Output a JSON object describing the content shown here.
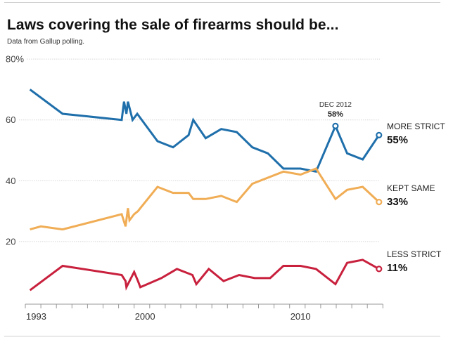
{
  "header": {
    "title": "Laws covering the sale of firearms should be...",
    "subtitle": "Data from Gallup polling."
  },
  "chart_data": {
    "type": "line",
    "title": "Laws covering the sale of firearms should be...",
    "subtitle": "Data from Gallup polling.",
    "xlabel": "",
    "ylabel": "",
    "xlim": [
      1993,
      2016
    ],
    "ylim": [
      0,
      80
    ],
    "y_ticks": [
      {
        "value": 80,
        "label": "80%"
      },
      {
        "value": 60,
        "label": "60"
      },
      {
        "value": 40,
        "label": "40"
      },
      {
        "value": 20,
        "label": "20"
      }
    ],
    "x_tick_labels": [
      {
        "value": 1993,
        "label": "1993"
      },
      {
        "value": 2000,
        "label": "2000"
      },
      {
        "value": 2010,
        "label": "2010"
      }
    ],
    "x_minor_ticks_every_year": true,
    "grid": "horizontal dotted",
    "legend": "direct labels at right end",
    "series": [
      {
        "name": "MORE STRICT",
        "end_label": "55%",
        "color": "#1f6fab",
        "points": [
          [
            1993.3,
            70
          ],
          [
            1995.4,
            62
          ],
          [
            1999.2,
            60
          ],
          [
            1999.35,
            66
          ],
          [
            1999.5,
            62
          ],
          [
            1999.6,
            66
          ],
          [
            1999.9,
            60
          ],
          [
            2000.2,
            62
          ],
          [
            2001.5,
            53
          ],
          [
            2002.5,
            51
          ],
          [
            2003.5,
            55
          ],
          [
            2003.8,
            60
          ],
          [
            2004.6,
            54
          ],
          [
            2005.6,
            57
          ],
          [
            2006.6,
            56
          ],
          [
            2007.6,
            51
          ],
          [
            2008.6,
            49
          ],
          [
            2009.6,
            44
          ],
          [
            2010.7,
            44
          ],
          [
            2011.7,
            43
          ],
          [
            2012.95,
            58
          ],
          [
            2013.7,
            49
          ],
          [
            2014.7,
            47
          ],
          [
            2015.75,
            55
          ]
        ]
      },
      {
        "name": "KEPT SAME",
        "end_label": "33%",
        "color": "#f0ad55",
        "points": [
          [
            1993.3,
            24
          ],
          [
            1994.0,
            25
          ],
          [
            1995.4,
            24
          ],
          [
            1999.2,
            29
          ],
          [
            1999.45,
            25
          ],
          [
            1999.6,
            31
          ],
          [
            1999.7,
            27
          ],
          [
            2000.0,
            29
          ],
          [
            2000.25,
            30
          ],
          [
            2000.4,
            31
          ],
          [
            2001.5,
            38
          ],
          [
            2002.5,
            36
          ],
          [
            2003.5,
            36
          ],
          [
            2003.8,
            34
          ],
          [
            2004.6,
            34
          ],
          [
            2005.6,
            35
          ],
          [
            2006.6,
            33
          ],
          [
            2007.6,
            39
          ],
          [
            2009.6,
            43
          ],
          [
            2010.7,
            42
          ],
          [
            2011.7,
            44
          ],
          [
            2012.95,
            34
          ],
          [
            2013.7,
            37
          ],
          [
            2014.7,
            38
          ],
          [
            2015.75,
            33
          ]
        ]
      },
      {
        "name": "LESS STRICT",
        "end_label": "11%",
        "color": "#c8203d",
        "points": [
          [
            1993.3,
            4
          ],
          [
            1995.4,
            12
          ],
          [
            1999.2,
            9
          ],
          [
            1999.45,
            7
          ],
          [
            1999.5,
            5
          ],
          [
            1999.6,
            6
          ],
          [
            2000.0,
            10
          ],
          [
            2000.25,
            7
          ],
          [
            2000.4,
            5
          ],
          [
            2001.75,
            8
          ],
          [
            2002.75,
            11
          ],
          [
            2003.75,
            9
          ],
          [
            2004.0,
            6
          ],
          [
            2004.8,
            11
          ],
          [
            2005.75,
            7
          ],
          [
            2006.75,
            9
          ],
          [
            2007.75,
            8
          ],
          [
            2008.75,
            8
          ],
          [
            2009.6,
            12
          ],
          [
            2010.7,
            12
          ],
          [
            2011.7,
            11
          ],
          [
            2012.95,
            6
          ],
          [
            2013.7,
            13
          ],
          [
            2014.7,
            14
          ],
          [
            2015.75,
            11
          ]
        ]
      }
    ],
    "annotations": [
      {
        "series": "MORE STRICT",
        "x": 2012.95,
        "y": 58,
        "label_top": "DEC 2012",
        "label_value": "58%"
      }
    ]
  }
}
